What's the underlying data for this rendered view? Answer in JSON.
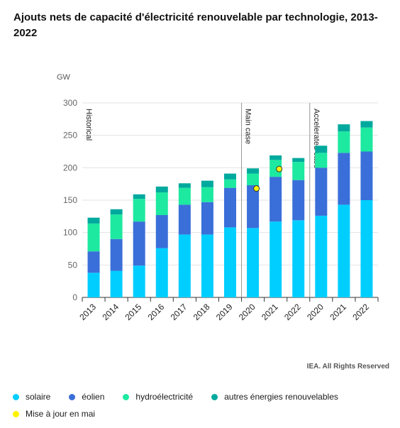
{
  "title": "Ajouts nets de capacité d'électricité renouvelable par technologie, 2013-2022",
  "credit": "IEA. All Rights Reserved",
  "colors": {
    "solaire": "#00ceff",
    "eolien": "#3a6fd9",
    "hydro": "#1de9a0",
    "autres": "#00a99d",
    "update": "#fff200"
  },
  "legend": [
    {
      "key": "solaire",
      "label": "solaire"
    },
    {
      "key": "eolien",
      "label": "éolien"
    },
    {
      "key": "hydro",
      "label": "hydroélectricité"
    },
    {
      "key": "autres",
      "label": "autres énergies renouvelables"
    },
    {
      "key": "update",
      "label": "Mise à jour en mai"
    }
  ],
  "chart_data": {
    "type": "bar",
    "stacked": true,
    "ylabel": "GW",
    "ylim": [
      0,
      300
    ],
    "yticks": [
      0,
      50,
      100,
      150,
      200,
      250,
      300
    ],
    "grid": true,
    "categories": [
      "2013",
      "2014",
      "2015",
      "2016",
      "2017",
      "2018",
      "2019",
      "2020",
      "2021",
      "2022",
      "2020",
      "2021",
      "2022"
    ],
    "sections": [
      {
        "label": "Historical",
        "start_index": 0
      },
      {
        "label": "Main case",
        "start_index": 7
      },
      {
        "label": "Accelerated case",
        "start_index": 10
      }
    ],
    "series": [
      {
        "name": "solaire",
        "key": "solaire",
        "values": [
          38,
          41,
          49,
          76,
          97,
          97,
          108,
          107,
          117,
          119,
          126,
          143,
          150
        ]
      },
      {
        "name": "éolien",
        "key": "eolien",
        "values": [
          33,
          49,
          68,
          51,
          46,
          50,
          61,
          66,
          69,
          62,
          74,
          80,
          75
        ]
      },
      {
        "name": "hydroélectricité",
        "key": "hydro",
        "values": [
          43,
          38,
          35,
          35,
          26,
          23,
          13,
          18,
          26,
          28,
          23,
          33,
          37
        ]
      },
      {
        "name": "autres énergies renouvelables",
        "key": "autres",
        "values": [
          9,
          8,
          7,
          9,
          7,
          10,
          9,
          8,
          7,
          6,
          11,
          11,
          10
        ]
      }
    ],
    "update_points": [
      {
        "index": 7,
        "value": 168
      },
      {
        "index": 8,
        "value": 198
      }
    ]
  }
}
